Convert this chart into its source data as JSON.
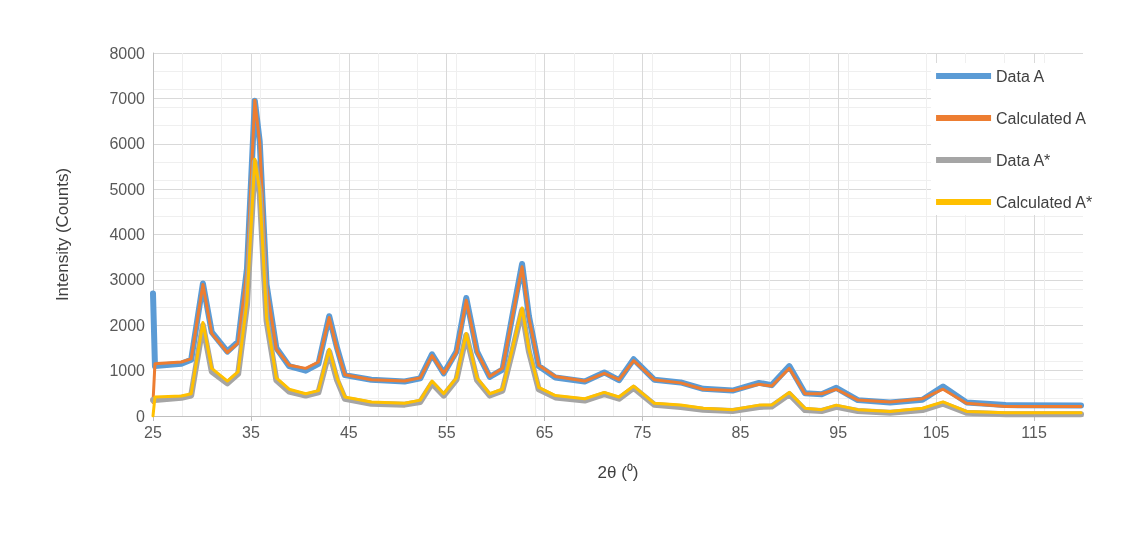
{
  "chart_data": {
    "type": "line",
    "xlabel": "2θ (⁰)",
    "ylabel": "Intensity (Counts)",
    "x": [
      25,
      25.2,
      27.9,
      28.9,
      30.1,
      31.0,
      32.6,
      33.7,
      34.6,
      35.4,
      35.9,
      36.6,
      37.6,
      38.9,
      40.6,
      41.9,
      43.0,
      43.8,
      44.6,
      47.3,
      50.7,
      52.3,
      53.5,
      54.7,
      56.0,
      57.0,
      58.1,
      59.4,
      60.7,
      61.7,
      62.7,
      63.4,
      64.4,
      66.1,
      69.1,
      71.1,
      72.6,
      74.1,
      76.2,
      78.9,
      81.2,
      84.2,
      86.9,
      88.2,
      90.0,
      91.6,
      93.3,
      94.8,
      97.0,
      100.3,
      103.6,
      105.7,
      108.1,
      112.1,
      119.8
    ],
    "series": [
      {
        "name": "Data A",
        "color": "#5b9bd5",
        "values": [
          2700,
          1100,
          1150,
          1240,
          2920,
          1850,
          1420,
          1640,
          3250,
          6950,
          6050,
          2900,
          1500,
          1100,
          1000,
          1150,
          2200,
          1500,
          900,
          800,
          760,
          830,
          1360,
          940,
          1420,
          2600,
          1420,
          860,
          1020,
          2200,
          3350,
          2200,
          1100,
          850,
          760,
          960,
          790,
          1250,
          800,
          740,
          600,
          560,
          730,
          680,
          1100,
          500,
          480,
          620,
          350,
          300,
          360,
          650,
          300,
          240,
          230
        ]
      },
      {
        "name": "Calculated A",
        "color": "#ed7d31",
        "values": [
          300,
          1150,
          1190,
          1260,
          2900,
          1820,
          1400,
          1610,
          3220,
          6960,
          6020,
          2870,
          1470,
          1120,
          1050,
          1190,
          2170,
          1470,
          910,
          800,
          770,
          840,
          1330,
          940,
          1400,
          2550,
          1400,
          870,
          1050,
          2170,
          3290,
          2170,
          1120,
          870,
          770,
          940,
          800,
          1220,
          800,
          730,
          590,
          560,
          700,
          660,
          1050,
          490,
          490,
          590,
          350,
          310,
          380,
          590,
          280,
          210,
          210
        ]
      },
      {
        "name": "Data A*",
        "color": "#a5a5a5",
        "values": [
          350,
          350,
          400,
          450,
          2000,
          980,
          720,
          930,
          2450,
          5600,
          4900,
          2100,
          790,
          540,
          450,
          520,
          1420,
          790,
          380,
          270,
          250,
          310,
          720,
          450,
          800,
          1780,
          790,
          450,
          560,
          1420,
          2330,
          1420,
          590,
          410,
          340,
          480,
          380,
          620,
          250,
          200,
          140,
          110,
          200,
          210,
          480,
          130,
          110,
          200,
          110,
          70,
          130,
          270,
          70,
          40,
          40
        ]
      },
      {
        "name": "Calculated A*",
        "color": "#ffc000",
        "values": [
          0,
          420,
          440,
          490,
          2060,
          1050,
          770,
          980,
          2520,
          5660,
          4970,
          2170,
          840,
          590,
          490,
          560,
          1470,
          840,
          420,
          310,
          280,
          350,
          770,
          490,
          840,
          1820,
          840,
          490,
          590,
          1470,
          2380,
          1470,
          630,
          450,
          380,
          520,
          420,
          660,
          280,
          240,
          170,
          140,
          240,
          240,
          520,
          170,
          140,
          240,
          140,
          100,
          170,
          310,
          100,
          70,
          70
        ]
      }
    ],
    "xlim": [
      25,
      120
    ],
    "xticks": [
      25,
      35,
      45,
      55,
      65,
      75,
      85,
      95,
      105,
      115
    ],
    "ylim": [
      0,
      8000
    ],
    "yticks": [
      0,
      1000,
      2000,
      3000,
      4000,
      5000,
      6000,
      7000,
      8000
    ],
    "grid": true,
    "legend": "top right",
    "marker": "none",
    "line_style": "solid"
  }
}
